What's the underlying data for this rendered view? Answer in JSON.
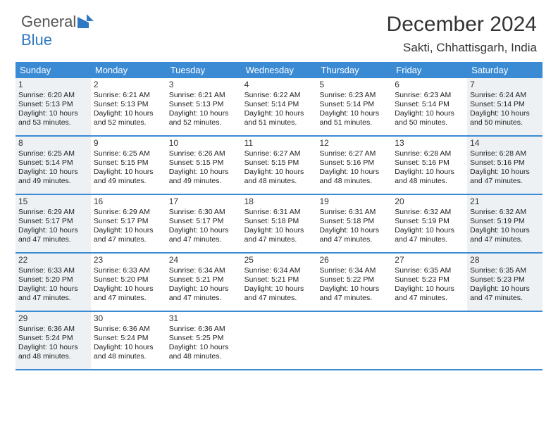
{
  "logo": {
    "text1": "General",
    "text2": "Blue"
  },
  "header": {
    "month": "December 2024",
    "location": "Sakti, Chhattisgarh, India"
  },
  "colors": {
    "header_bg": "#3b8bd4",
    "header_text": "#ffffff",
    "shaded_bg": "#eef1f3",
    "text": "#222222",
    "rule": "#3b8bd4"
  },
  "weekdays": [
    "Sunday",
    "Monday",
    "Tuesday",
    "Wednesday",
    "Thursday",
    "Friday",
    "Saturday"
  ],
  "weeks": [
    [
      {
        "n": "1",
        "shaded": true,
        "sunrise": "Sunrise: 6:20 AM",
        "sunset": "Sunset: 5:13 PM",
        "daylight": "Daylight: 10 hours and 53 minutes."
      },
      {
        "n": "2",
        "shaded": false,
        "sunrise": "Sunrise: 6:21 AM",
        "sunset": "Sunset: 5:13 PM",
        "daylight": "Daylight: 10 hours and 52 minutes."
      },
      {
        "n": "3",
        "shaded": false,
        "sunrise": "Sunrise: 6:21 AM",
        "sunset": "Sunset: 5:13 PM",
        "daylight": "Daylight: 10 hours and 52 minutes."
      },
      {
        "n": "4",
        "shaded": false,
        "sunrise": "Sunrise: 6:22 AM",
        "sunset": "Sunset: 5:14 PM",
        "daylight": "Daylight: 10 hours and 51 minutes."
      },
      {
        "n": "5",
        "shaded": false,
        "sunrise": "Sunrise: 6:23 AM",
        "sunset": "Sunset: 5:14 PM",
        "daylight": "Daylight: 10 hours and 51 minutes."
      },
      {
        "n": "6",
        "shaded": false,
        "sunrise": "Sunrise: 6:23 AM",
        "sunset": "Sunset: 5:14 PM",
        "daylight": "Daylight: 10 hours and 50 minutes."
      },
      {
        "n": "7",
        "shaded": true,
        "sunrise": "Sunrise: 6:24 AM",
        "sunset": "Sunset: 5:14 PM",
        "daylight": "Daylight: 10 hours and 50 minutes."
      }
    ],
    [
      {
        "n": "8",
        "shaded": true,
        "sunrise": "Sunrise: 6:25 AM",
        "sunset": "Sunset: 5:14 PM",
        "daylight": "Daylight: 10 hours and 49 minutes."
      },
      {
        "n": "9",
        "shaded": false,
        "sunrise": "Sunrise: 6:25 AM",
        "sunset": "Sunset: 5:15 PM",
        "daylight": "Daylight: 10 hours and 49 minutes."
      },
      {
        "n": "10",
        "shaded": false,
        "sunrise": "Sunrise: 6:26 AM",
        "sunset": "Sunset: 5:15 PM",
        "daylight": "Daylight: 10 hours and 49 minutes."
      },
      {
        "n": "11",
        "shaded": false,
        "sunrise": "Sunrise: 6:27 AM",
        "sunset": "Sunset: 5:15 PM",
        "daylight": "Daylight: 10 hours and 48 minutes."
      },
      {
        "n": "12",
        "shaded": false,
        "sunrise": "Sunrise: 6:27 AM",
        "sunset": "Sunset: 5:16 PM",
        "daylight": "Daylight: 10 hours and 48 minutes."
      },
      {
        "n": "13",
        "shaded": false,
        "sunrise": "Sunrise: 6:28 AM",
        "sunset": "Sunset: 5:16 PM",
        "daylight": "Daylight: 10 hours and 48 minutes."
      },
      {
        "n": "14",
        "shaded": true,
        "sunrise": "Sunrise: 6:28 AM",
        "sunset": "Sunset: 5:16 PM",
        "daylight": "Daylight: 10 hours and 47 minutes."
      }
    ],
    [
      {
        "n": "15",
        "shaded": true,
        "sunrise": "Sunrise: 6:29 AM",
        "sunset": "Sunset: 5:17 PM",
        "daylight": "Daylight: 10 hours and 47 minutes."
      },
      {
        "n": "16",
        "shaded": false,
        "sunrise": "Sunrise: 6:29 AM",
        "sunset": "Sunset: 5:17 PM",
        "daylight": "Daylight: 10 hours and 47 minutes."
      },
      {
        "n": "17",
        "shaded": false,
        "sunrise": "Sunrise: 6:30 AM",
        "sunset": "Sunset: 5:17 PM",
        "daylight": "Daylight: 10 hours and 47 minutes."
      },
      {
        "n": "18",
        "shaded": false,
        "sunrise": "Sunrise: 6:31 AM",
        "sunset": "Sunset: 5:18 PM",
        "daylight": "Daylight: 10 hours and 47 minutes."
      },
      {
        "n": "19",
        "shaded": false,
        "sunrise": "Sunrise: 6:31 AM",
        "sunset": "Sunset: 5:18 PM",
        "daylight": "Daylight: 10 hours and 47 minutes."
      },
      {
        "n": "20",
        "shaded": false,
        "sunrise": "Sunrise: 6:32 AM",
        "sunset": "Sunset: 5:19 PM",
        "daylight": "Daylight: 10 hours and 47 minutes."
      },
      {
        "n": "21",
        "shaded": true,
        "sunrise": "Sunrise: 6:32 AM",
        "sunset": "Sunset: 5:19 PM",
        "daylight": "Daylight: 10 hours and 47 minutes."
      }
    ],
    [
      {
        "n": "22",
        "shaded": true,
        "sunrise": "Sunrise: 6:33 AM",
        "sunset": "Sunset: 5:20 PM",
        "daylight": "Daylight: 10 hours and 47 minutes."
      },
      {
        "n": "23",
        "shaded": false,
        "sunrise": "Sunrise: 6:33 AM",
        "sunset": "Sunset: 5:20 PM",
        "daylight": "Daylight: 10 hours and 47 minutes."
      },
      {
        "n": "24",
        "shaded": false,
        "sunrise": "Sunrise: 6:34 AM",
        "sunset": "Sunset: 5:21 PM",
        "daylight": "Daylight: 10 hours and 47 minutes."
      },
      {
        "n": "25",
        "shaded": false,
        "sunrise": "Sunrise: 6:34 AM",
        "sunset": "Sunset: 5:21 PM",
        "daylight": "Daylight: 10 hours and 47 minutes."
      },
      {
        "n": "26",
        "shaded": false,
        "sunrise": "Sunrise: 6:34 AM",
        "sunset": "Sunset: 5:22 PM",
        "daylight": "Daylight: 10 hours and 47 minutes."
      },
      {
        "n": "27",
        "shaded": false,
        "sunrise": "Sunrise: 6:35 AM",
        "sunset": "Sunset: 5:23 PM",
        "daylight": "Daylight: 10 hours and 47 minutes."
      },
      {
        "n": "28",
        "shaded": true,
        "sunrise": "Sunrise: 6:35 AM",
        "sunset": "Sunset: 5:23 PM",
        "daylight": "Daylight: 10 hours and 47 minutes."
      }
    ],
    [
      {
        "n": "29",
        "shaded": true,
        "sunrise": "Sunrise: 6:36 AM",
        "sunset": "Sunset: 5:24 PM",
        "daylight": "Daylight: 10 hours and 48 minutes."
      },
      {
        "n": "30",
        "shaded": false,
        "sunrise": "Sunrise: 6:36 AM",
        "sunset": "Sunset: 5:24 PM",
        "daylight": "Daylight: 10 hours and 48 minutes."
      },
      {
        "n": "31",
        "shaded": false,
        "sunrise": "Sunrise: 6:36 AM",
        "sunset": "Sunset: 5:25 PM",
        "daylight": "Daylight: 10 hours and 48 minutes."
      },
      {
        "empty": true
      },
      {
        "empty": true
      },
      {
        "empty": true
      },
      {
        "empty": true
      }
    ]
  ]
}
